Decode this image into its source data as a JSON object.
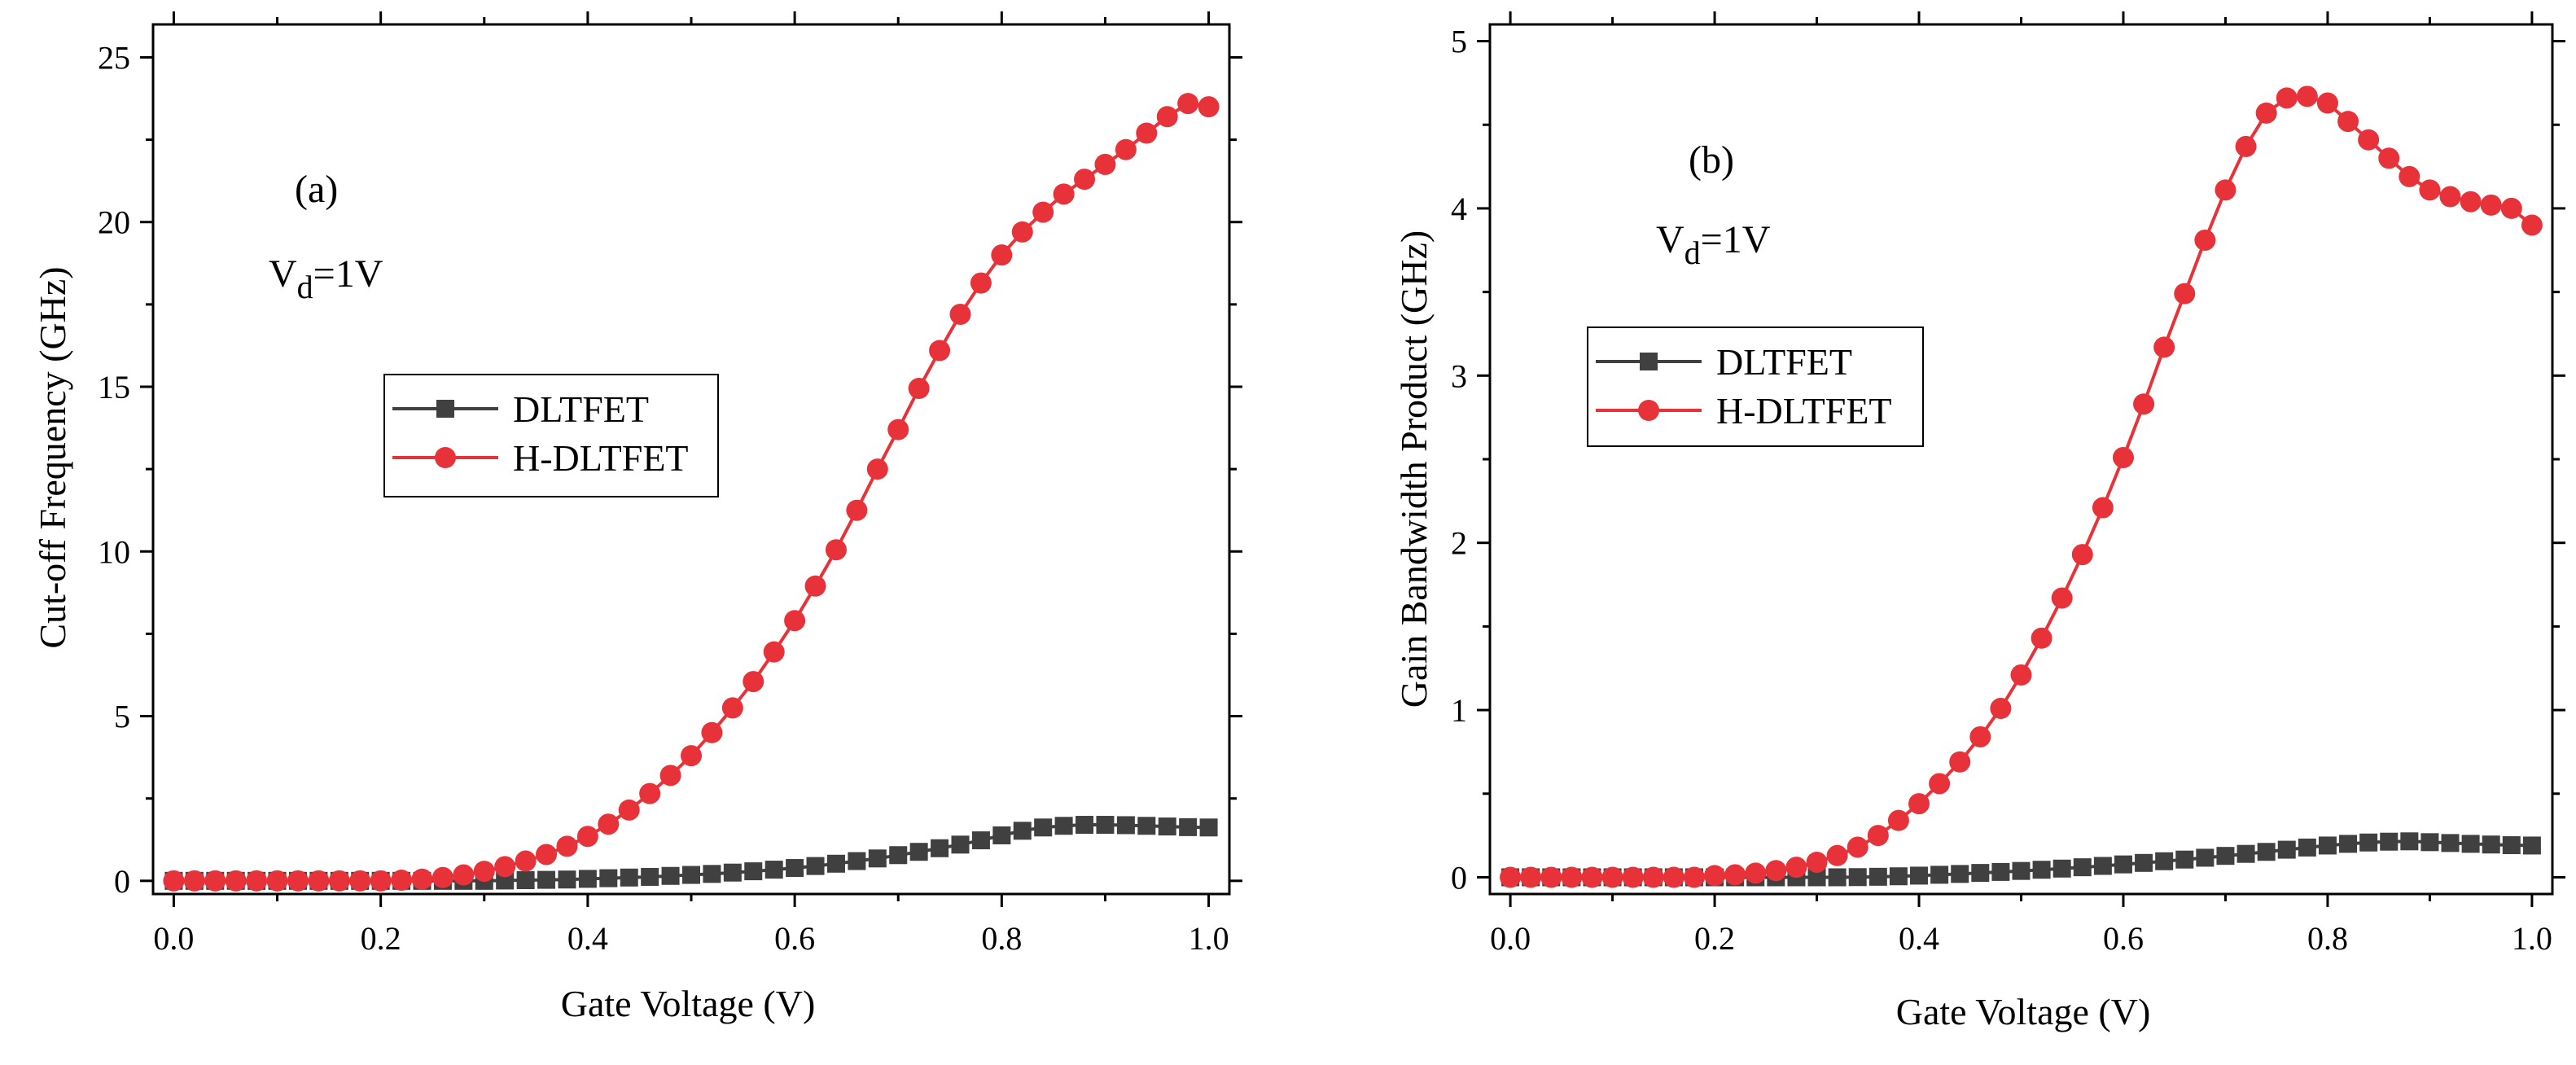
{
  "chart_data": [
    {
      "id": "a",
      "type": "line",
      "panel_label": "(a)",
      "condition": {
        "prefix": "V",
        "subscript": "d",
        "suffix": "=1V"
      },
      "xlabel": "Gate Voltage (V)",
      "ylabel": "Cut-off Frequency (GHz)",
      "xlim": [
        -0.02,
        1.02
      ],
      "ylim": [
        -0.4,
        26
      ],
      "xticks": [
        0.0,
        0.2,
        0.4,
        0.6,
        0.8,
        1.0
      ],
      "xtick_labels": [
        "0.0",
        "0.2",
        "0.4",
        "0.6",
        "0.8",
        "1.0"
      ],
      "yticks": [
        0,
        5,
        10,
        15,
        20,
        25
      ],
      "ytick_labels": [
        "0",
        "5",
        "10",
        "15",
        "20",
        "25"
      ],
      "legend_position": "center-left",
      "x": [
        0.0,
        0.02,
        0.04,
        0.06,
        0.08,
        0.1,
        0.12,
        0.14,
        0.16,
        0.18,
        0.2,
        0.22,
        0.24,
        0.26,
        0.28,
        0.3,
        0.32,
        0.34,
        0.36,
        0.38,
        0.4,
        0.42,
        0.44,
        0.46,
        0.48,
        0.5,
        0.52,
        0.54,
        0.56,
        0.58,
        0.6,
        0.62,
        0.64,
        0.66,
        0.68,
        0.7,
        0.72,
        0.74,
        0.76,
        0.78,
        0.8,
        0.82,
        0.84,
        0.86,
        0.88,
        0.9,
        0.92,
        0.94,
        0.96,
        0.98,
        1.0
      ],
      "series": [
        {
          "name": "DLTFET",
          "color": "#404040",
          "marker": "square",
          "values": [
            0,
            0,
            0,
            0,
            0,
            0,
            0,
            0,
            0,
            0,
            0,
            0,
            0,
            0,
            0,
            0,
            0.01,
            0.02,
            0.03,
            0.04,
            0.06,
            0.08,
            0.1,
            0.12,
            0.15,
            0.18,
            0.21,
            0.25,
            0.29,
            0.34,
            0.39,
            0.45,
            0.52,
            0.6,
            0.68,
            0.78,
            0.88,
            0.99,
            1.1,
            1.23,
            1.38,
            1.52,
            1.62,
            1.67,
            1.7,
            1.7,
            1.69,
            1.67,
            1.65,
            1.63,
            1.62
          ]
        },
        {
          "name": "H-DLTFET",
          "color": "#e8323a",
          "marker": "circle",
          "values": [
            0,
            0,
            0,
            0,
            0,
            0,
            0,
            0,
            0,
            0,
            0,
            0.02,
            0.05,
            0.1,
            0.18,
            0.29,
            0.43,
            0.6,
            0.8,
            1.05,
            1.35,
            1.72,
            2.15,
            2.65,
            3.2,
            3.8,
            4.5,
            5.25,
            6.05,
            6.95,
            7.9,
            8.95,
            10.05,
            11.25,
            12.5,
            13.7,
            14.95,
            16.1,
            17.2,
            18.15,
            19.0,
            19.7,
            20.3,
            20.85,
            21.3,
            21.75,
            22.2,
            22.7,
            23.2,
            23.6,
            23.5
          ]
        }
      ]
    },
    {
      "id": "b",
      "type": "line",
      "panel_label": "(b)",
      "condition": {
        "prefix": "V",
        "subscript": "d",
        "suffix": "=1V"
      },
      "xlabel": "Gate Voltage (V)",
      "ylabel": "Gain Bandwidth Product (GHz)",
      "xlim": [
        -0.02,
        1.02
      ],
      "ylim": [
        -0.1,
        5.1
      ],
      "xticks": [
        0.0,
        0.2,
        0.4,
        0.6,
        0.8,
        1.0
      ],
      "xtick_labels": [
        "0.0",
        "0.2",
        "0.4",
        "0.6",
        "0.8",
        "1.0"
      ],
      "yticks": [
        0,
        1,
        2,
        3,
        4,
        5
      ],
      "ytick_labels": [
        "0",
        "1",
        "2",
        "3",
        "4",
        "5"
      ],
      "legend_position": "upper-left",
      "x": [
        0.0,
        0.02,
        0.04,
        0.06,
        0.08,
        0.1,
        0.12,
        0.14,
        0.16,
        0.18,
        0.2,
        0.22,
        0.24,
        0.26,
        0.28,
        0.3,
        0.32,
        0.34,
        0.36,
        0.38,
        0.4,
        0.42,
        0.44,
        0.46,
        0.48,
        0.5,
        0.52,
        0.54,
        0.56,
        0.58,
        0.6,
        0.62,
        0.64,
        0.66,
        0.68,
        0.7,
        0.72,
        0.74,
        0.76,
        0.78,
        0.8,
        0.82,
        0.84,
        0.86,
        0.88,
        0.9,
        0.92,
        0.94,
        0.96,
        0.98,
        1.0
      ],
      "series": [
        {
          "name": "DLTFET",
          "color": "#404040",
          "marker": "square",
          "values": [
            0,
            0,
            0,
            0,
            0,
            0,
            0,
            0,
            0,
            0,
            0,
            0,
            0,
            0,
            0,
            0,
            0,
            0.001,
            0.003,
            0.006,
            0.01,
            0.015,
            0.02,
            0.026,
            0.032,
            0.038,
            0.045,
            0.052,
            0.06,
            0.068,
            0.077,
            0.086,
            0.096,
            0.106,
            0.117,
            0.128,
            0.14,
            0.152,
            0.165,
            0.178,
            0.19,
            0.2,
            0.208,
            0.213,
            0.215,
            0.21,
            0.205,
            0.2,
            0.196,
            0.192,
            0.19
          ]
        },
        {
          "name": "H-DLTFET",
          "color": "#e8323a",
          "marker": "circle",
          "values": [
            0,
            0,
            0,
            0,
            0,
            0,
            0,
            0,
            0,
            0,
            0.01,
            0.015,
            0.025,
            0.04,
            0.06,
            0.09,
            0.13,
            0.18,
            0.25,
            0.34,
            0.44,
            0.56,
            0.69,
            0.84,
            1.01,
            1.21,
            1.43,
            1.67,
            1.93,
            2.21,
            2.51,
            2.83,
            3.17,
            3.49,
            3.81,
            4.11,
            4.37,
            4.57,
            4.66,
            4.67,
            4.63,
            4.52,
            4.41,
            4.3,
            4.19,
            4.11,
            4.07,
            4.04,
            4.02,
            4.0,
            3.9
          ]
        }
      ]
    }
  ]
}
